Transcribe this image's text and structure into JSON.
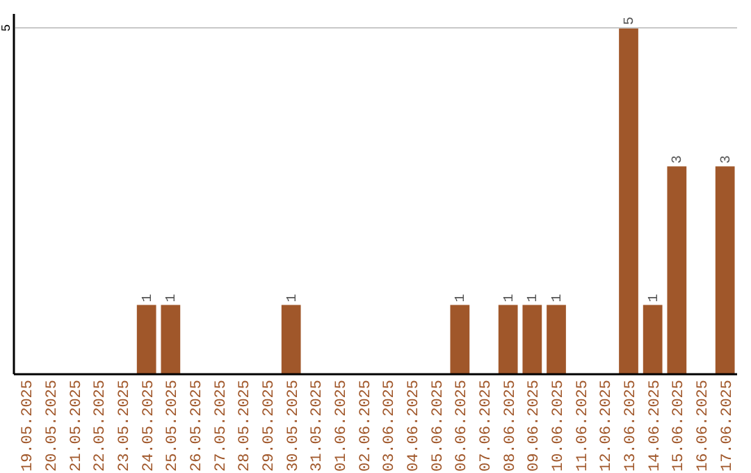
{
  "chart_data": {
    "type": "bar",
    "categories": [
      "19.05.2025",
      "20.05.2025",
      "21.05.2025",
      "22.05.2025",
      "23.05.2025",
      "24.05.2025",
      "25.05.2025",
      "26.05.2025",
      "27.05.2025",
      "28.05.2025",
      "29.05.2025",
      "30.05.2025",
      "31.05.2025",
      "01.06.2025",
      "02.06.2025",
      "03.06.2025",
      "04.06.2025",
      "05.06.2025",
      "06.06.2025",
      "07.06.2025",
      "08.06.2025",
      "09.06.2025",
      "10.06.2025",
      "11.06.2025",
      "12.06.2025",
      "13.06.2025",
      "14.06.2025",
      "15.06.2025",
      "16.06.2025",
      "17.06.2025"
    ],
    "values": [
      0,
      0,
      0,
      0,
      0,
      1,
      1,
      0,
      0,
      0,
      0,
      1,
      0,
      0,
      0,
      0,
      0,
      0,
      1,
      0,
      1,
      1,
      1,
      0,
      0,
      5,
      1,
      3,
      0,
      3
    ],
    "color": "#a0572a",
    "ylim": [
      0,
      5
    ],
    "yticks": [
      5
    ],
    "ref_lines": [
      {
        "axis": "y",
        "value": 5,
        "color": "#c8c8c8"
      }
    ],
    "value_labels": [
      null,
      null,
      null,
      null,
      null,
      "1",
      "1",
      null,
      null,
      null,
      null,
      "1",
      null,
      null,
      null,
      null,
      null,
      null,
      "1",
      null,
      "1",
      "1",
      "1",
      null,
      null,
      "5",
      "1",
      "3",
      null,
      "3"
    ]
  }
}
